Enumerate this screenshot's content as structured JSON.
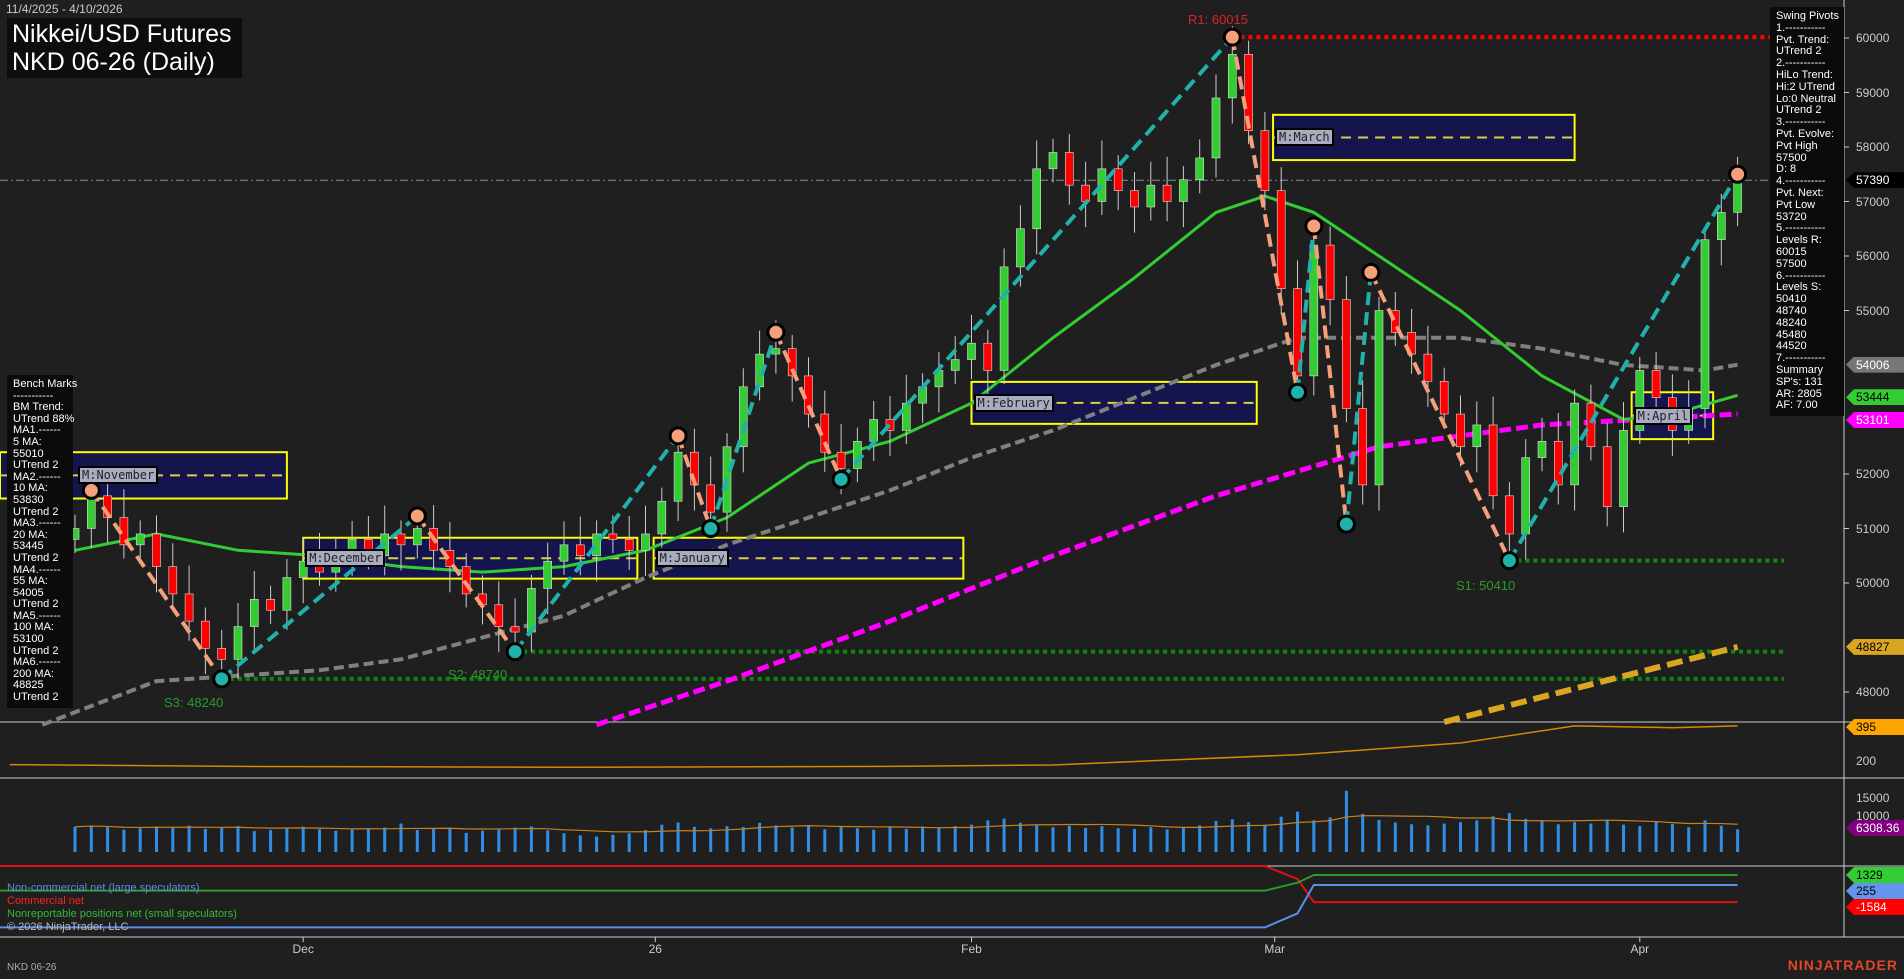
{
  "header": {
    "date_range": "11/4/2025 - 4/10/2026",
    "title_line1": "Nikkei/USD Futures",
    "title_line2": "NKD 06-26 (Daily)"
  },
  "swing_pivots": [
    "Swing Pivots",
    "1.-----------",
    "Pvt. Trend:",
    "UTrend 2",
    "2.-----------",
    "HiLo Trend:",
    "Hi:2 UTrend",
    "Lo:0 Neutral",
    "UTrend 2",
    "3.-----------",
    "Pvt. Evolve:",
    "Pvt High",
    "57500",
    "D: 8",
    "4.-----------",
    "Pvt. Next:",
    "Pvt Low",
    "53720",
    "5.-----------",
    "Levels R:",
    "60015",
    "57500",
    "6.-----------",
    "Levels S:",
    "50410",
    "48740",
    "48240",
    "45480",
    "44520",
    "7.-----------",
    "Summary",
    "SP's: 131",
    "AR: 2805",
    "AF: 7.00"
  ],
  "bench_marks": [
    "Bench Marks",
    "-----------",
    "BM Trend:",
    "UTrend 88%",
    "MA1.------",
    "5 MA:",
    "55010",
    "UTrend 2",
    "MA2.------",
    "10 MA:",
    "53830",
    "UTrend 2",
    "MA3.------",
    "20 MA:",
    "53445",
    "UTrend 2",
    "MA4.------",
    "55 MA:",
    "54005",
    "UTrend 2",
    "MA5.------",
    "100 MA:",
    "53100",
    "UTrend 2",
    "MA6.------",
    "200 MA:",
    "48825",
    "UTrend 2"
  ],
  "price_axis": [
    "60000",
    "59000",
    "58000",
    "57000",
    "56000",
    "55000",
    "52000",
    "51000",
    "50000",
    "48000"
  ],
  "indicator_axis": [
    "200"
  ],
  "volume_axis": [
    "15000",
    "10000"
  ],
  "tags": {
    "last": "57390",
    "ma55": "54006",
    "ma20": "53444",
    "ma100": "53101",
    "ma200": "48827",
    "indicator": "395",
    "volume": "6308.36",
    "noncomm": "255",
    "nonrep": "1329",
    "comm": "-1584"
  },
  "colors": {
    "bull": "#33cc33",
    "bear": "#ff0000",
    "up_leg": "#20b2aa",
    "down_leg": "#f4a07a",
    "ma20": "#33cc33",
    "ma55": "#808080",
    "ma100": "#ff00ff",
    "ma200": "#daa520",
    "box_fill": "#15154d",
    "box_edge": "#ffff00"
  },
  "levels": {
    "r1": "R1: 60015",
    "s1": "S1: 50410",
    "s2": "S2: 48740",
    "s3": "S3: 48240"
  },
  "month_boxes": [
    {
      "label": "M:November",
      "start": -5,
      "end": 13,
      "high": 52400,
      "low": 51550
    },
    {
      "label": "M:December",
      "start": 14,
      "end": 34.5,
      "high": 50830,
      "low": 50080
    },
    {
      "label": "M:January",
      "start": 35.5,
      "end": 54.5,
      "high": 50830,
      "low": 50080
    },
    {
      "label": "M:February",
      "start": 55,
      "end": 72.5,
      "high": 53690,
      "low": 52920
    },
    {
      "label": "M:March",
      "start": 73.5,
      "end": 92,
      "high": 58590,
      "low": 57760
    },
    {
      "label": "M:April",
      "start": 95.5,
      "end": 100.5,
      "high": 53500,
      "low": 52640
    }
  ],
  "x_ticks": [
    {
      "label": "Dec",
      "index": 14
    },
    {
      "label": "26",
      "index": 35.6
    },
    {
      "label": "Feb",
      "index": 55
    },
    {
      "label": "Mar",
      "index": 73.6
    },
    {
      "label": "Apr",
      "index": 96
    }
  ],
  "legend": {
    "noncomm": "Non-commercial net (large speculators)",
    "comm": "Commercial net",
    "nonrep": "Nonreportable positions net (small speculators)",
    "copyright": "© 2026 NinjaTrader, LLC"
  },
  "footer": {
    "instrument": "NKD 06-26",
    "logo": "NINJATRADER"
  },
  "chart_data": {
    "type": "candlestick",
    "ylim": [
      47400,
      60500
    ],
    "closes": [
      51000,
      51600,
      51200,
      50700,
      50900,
      50300,
      49800,
      49300,
      48800,
      48600,
      49200,
      49700,
      49500,
      50100,
      50400,
      50200,
      50600,
      50800,
      50500,
      50900,
      50700,
      51000,
      50600,
      50300,
      49800,
      49600,
      49200,
      49100,
      49900,
      50400,
      50700,
      50500,
      50900,
      50800,
      50600,
      50900,
      51500,
      52400,
      51800,
      51300,
      52500,
      53600,
      54200,
      54300,
      53800,
      53100,
      52400,
      52100,
      52600,
      53000,
      52800,
      53300,
      53600,
      53900,
      54100,
      54400,
      53900,
      55800,
      56500,
      57600,
      57900,
      57300,
      57000,
      57600,
      57200,
      56900,
      57300,
      57000,
      57400,
      57800,
      58900,
      59700,
      58300,
      57200,
      55400,
      53800,
      56200,
      55200,
      53200,
      51800,
      55000,
      54600,
      54200,
      53700,
      53100,
      52500,
      52900,
      51600,
      50900,
      52300,
      52600,
      51800,
      53300,
      52500,
      51400,
      52800,
      53900,
      53400,
      52800,
      53200,
      56300,
      56800,
      57390
    ],
    "pivots": [
      {
        "i": 1,
        "p": 51700,
        "t": "H"
      },
      {
        "i": 9,
        "p": 48240,
        "t": "L"
      },
      {
        "i": 21,
        "p": 51230,
        "t": "H"
      },
      {
        "i": 27,
        "p": 48740,
        "t": "L"
      },
      {
        "i": 37,
        "p": 52700,
        "t": "H"
      },
      {
        "i": 39,
        "p": 51000,
        "t": "L"
      },
      {
        "i": 43,
        "p": 54600,
        "t": "H"
      },
      {
        "i": 47,
        "p": 51900,
        "t": "L"
      },
      {
        "i": 71,
        "p": 60015,
        "t": "H"
      },
      {
        "i": 75,
        "p": 53500,
        "t": "L"
      },
      {
        "i": 76,
        "p": 56550,
        "t": "H"
      },
      {
        "i": 78,
        "p": 51080,
        "t": "L"
      },
      {
        "i": 79.5,
        "p": 55700,
        "t": "H"
      },
      {
        "i": 88,
        "p": 50410,
        "t": "L"
      },
      {
        "i": 102,
        "p": 57500,
        "t": "H"
      }
    ],
    "ma20": [
      [
        0,
        50600
      ],
      [
        5,
        50900
      ],
      [
        10,
        50600
      ],
      [
        15,
        50500
      ],
      [
        20,
        50300
      ],
      [
        25,
        50200
      ],
      [
        30,
        50300
      ],
      [
        35,
        50600
      ],
      [
        40,
        51200
      ],
      [
        45,
        52200
      ],
      [
        50,
        52600
      ],
      [
        55,
        53300
      ],
      [
        60,
        54500
      ],
      [
        65,
        55600
      ],
      [
        70,
        56800
      ],
      [
        73,
        57100
      ],
      [
        76,
        56800
      ],
      [
        80,
        56000
      ],
      [
        85,
        55000
      ],
      [
        90,
        53800
      ],
      [
        95,
        53000
      ],
      [
        98,
        53100
      ],
      [
        102,
        53444
      ]
    ],
    "ma55": [
      [
        -2,
        47400
      ],
      [
        5,
        48200
      ],
      [
        10,
        48300
      ],
      [
        15,
        48400
      ],
      [
        20,
        48600
      ],
      [
        25,
        49000
      ],
      [
        30,
        49400
      ],
      [
        35,
        50100
      ],
      [
        40,
        50700
      ],
      [
        45,
        51200
      ],
      [
        50,
        51700
      ],
      [
        55,
        52300
      ],
      [
        60,
        52800
      ],
      [
        65,
        53400
      ],
      [
        70,
        54000
      ],
      [
        75,
        54500
      ],
      [
        80,
        54500
      ],
      [
        85,
        54500
      ],
      [
        90,
        54300
      ],
      [
        95,
        54000
      ],
      [
        100,
        53900
      ],
      [
        102,
        54006
      ]
    ],
    "ma100": [
      [
        32,
        47400
      ],
      [
        40,
        48200
      ],
      [
        50,
        49300
      ],
      [
        60,
        50500
      ],
      [
        70,
        51600
      ],
      [
        80,
        52500
      ],
      [
        90,
        52900
      ],
      [
        96,
        53000
      ],
      [
        102,
        53101
      ]
    ],
    "ma200": [
      [
        84,
        47450
      ],
      [
        102,
        48827
      ]
    ],
    "last_price": 57390,
    "resistance": [
      {
        "p": 60015,
        "from": 71
      }
    ],
    "support": [
      {
        "p": 50410,
        "from": 88
      },
      {
        "p": 48740,
        "from": 27
      },
      {
        "p": 48240,
        "from": 9
      }
    ],
    "indicator": [
      [
        -4,
        180
      ],
      [
        10,
        170
      ],
      [
        30,
        165
      ],
      [
        50,
        170
      ],
      [
        60,
        178
      ],
      [
        75,
        235
      ],
      [
        85,
        300
      ],
      [
        92,
        395
      ],
      [
        98,
        385
      ],
      [
        102,
        395
      ]
    ],
    "volume": [
      7000,
      7400,
      6900,
      6200,
      6600,
      7100,
      6800,
      7300,
      6400,
      6900,
      7200,
      5800,
      6100,
      6500,
      7000,
      6300,
      5900,
      6200,
      6600,
      6800,
      7900,
      6100,
      6400,
      6700,
      5300,
      5900,
      6200,
      6800,
      7100,
      6000,
      5200,
      4600,
      4300,
      4800,
      5200,
      6100,
      7600,
      8200,
      7000,
      6600,
      7200,
      6900,
      8100,
      7400,
      6800,
      7500,
      6300,
      7000,
      6600,
      6200,
      6900,
      6400,
      7100,
      6800,
      7200,
      7600,
      8800,
      9300,
      8100,
      7400,
      6900,
      7300,
      6700,
      7200,
      6600,
      6400,
      6900,
      6300,
      6700,
      7400,
      8600,
      9100,
      8300,
      7600,
      9800,
      11200,
      8800,
      9600,
      17000,
      10600,
      8900,
      8200,
      7700,
      7400,
      7900,
      8300,
      8800,
      9900,
      10800,
      9200,
      8600,
      7700,
      8300,
      7900,
      8800,
      7600,
      7200,
      8400,
      7800,
      6900,
      8800,
      7300,
      6308
    ],
    "cot": {
      "noncomm": [
        [
          -5,
          -4300
        ],
        [
          73,
          -4300
        ],
        [
          75,
          -2800
        ],
        [
          76,
          255
        ],
        [
          102,
          255
        ]
      ],
      "comm": [
        [
          -5,
          2300
        ],
        [
          73,
          2300
        ],
        [
          75,
          900
        ],
        [
          76,
          -1584
        ],
        [
          102,
          -1584
        ]
      ],
      "nonrep": [
        [
          -5,
          -350
        ],
        [
          73,
          -350
        ],
        [
          75,
          500
        ],
        [
          76,
          1329
        ],
        [
          102,
          1329
        ]
      ]
    }
  }
}
